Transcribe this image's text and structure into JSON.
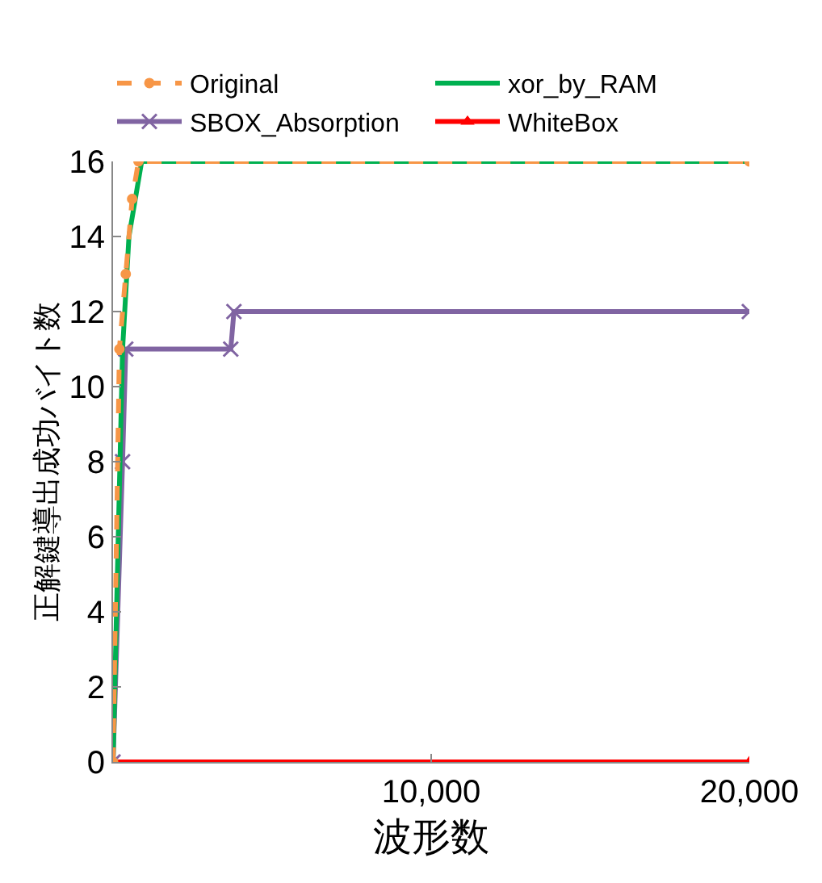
{
  "chart_data": {
    "type": "line",
    "xlabel": "波形数",
    "ylabel": "正解鍵導出成功バイト数",
    "xlim": [
      0,
      20000
    ],
    "xticks": [
      {
        "value": 0,
        "label": null
      },
      {
        "value": 10000,
        "label": "10,000"
      },
      {
        "value": 20000,
        "label": "20,000"
      }
    ],
    "ylim": [
      0,
      16
    ],
    "yticks": [
      0,
      2,
      4,
      6,
      8,
      10,
      12,
      14,
      16
    ],
    "grid": false,
    "legend": "top",
    "series": [
      {
        "name": "Original",
        "color": "#f79646",
        "line_style": "dashed",
        "marker": "circle",
        "x": [
          0,
          200,
          400,
          600,
          800,
          20000
        ],
        "values": [
          0,
          11,
          13,
          15,
          16,
          16
        ]
      },
      {
        "name": "xor_by_RAM",
        "color": "#00b050",
        "line_style": "solid",
        "x": [
          0,
          300,
          500,
          900,
          20000
        ],
        "values": [
          0,
          11,
          14,
          16,
          16
        ]
      },
      {
        "name": "SBOX_Absorption",
        "color": "#8064a2",
        "line_style": "solid",
        "marker": "cross",
        "x": [
          0,
          300,
          400,
          3700,
          3800,
          20000
        ],
        "values": [
          0,
          8,
          11,
          11,
          12,
          12
        ]
      },
      {
        "name": "WhiteBox",
        "color": "#ff0000",
        "line_style": "solid",
        "marker": "triangle",
        "x": [
          0,
          20000
        ],
        "values": [
          0,
          0
        ]
      }
    ]
  }
}
